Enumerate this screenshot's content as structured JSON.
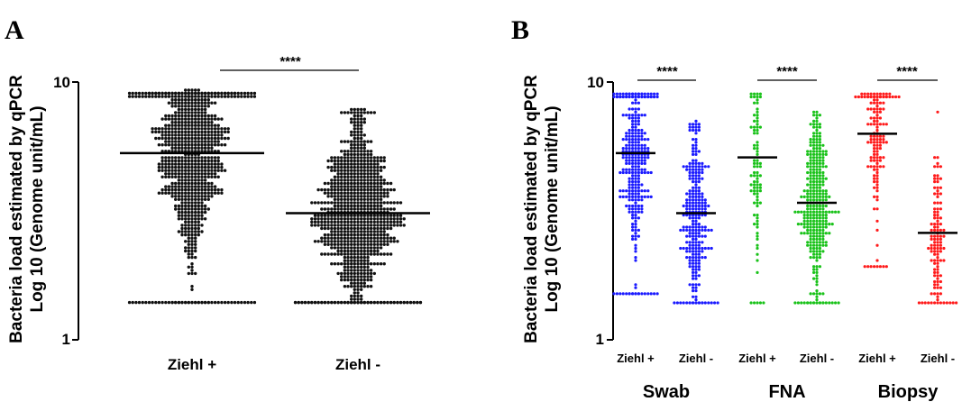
{
  "panels": [
    {
      "letter": "A",
      "ylabel_line1": "Bacteria load estimated by qPCR",
      "ylabel_line2": "Log 10 (Genome unit/mL)",
      "y_tick_labels": [
        "10",
        "1"
      ],
      "significance": [
        {
          "label": "****"
        }
      ]
    },
    {
      "letter": "B",
      "ylabel_line1": "Bacteria load estimated by qPCR",
      "ylabel_line2": "Log 10 (Genome unit/mL)",
      "y_tick_labels": [
        "10",
        "1"
      ],
      "group_labels": [
        "Swab",
        "FNA",
        "Biopsy"
      ],
      "significance": [
        {
          "label": "****"
        },
        {
          "label": "****"
        },
        {
          "label": "****"
        }
      ]
    }
  ],
  "colors": {
    "A": "#111111",
    "swab": "#1a1aff",
    "fna": "#19c219",
    "biopsy": "#ff1a1a"
  },
  "chart_data": [
    {
      "type": "scatter",
      "ylim": [
        1,
        10
      ],
      "y_scale": "log",
      "categories": [
        "Ziehl +",
        "Ziehl -"
      ],
      "series": [
        {
          "category": "Ziehl +",
          "median": 5.3,
          "min": 1.4,
          "max": 9.2,
          "n": 800,
          "color": "#111111"
        },
        {
          "category": "Ziehl -",
          "median": 3.1,
          "min": 1.4,
          "max": 7.8,
          "n": 900,
          "color": "#111111"
        }
      ],
      "significance": [
        {
          "between": [
            "Ziehl +",
            "Ziehl -"
          ],
          "label": "****"
        }
      ]
    },
    {
      "type": "scatter",
      "ylim": [
        1,
        10
      ],
      "y_scale": "log",
      "categories": [
        "Ziehl +",
        "Ziehl -",
        "Ziehl +",
        "Ziehl -",
        "Ziehl +",
        "Ziehl -"
      ],
      "groups": [
        "Swab",
        "FNA",
        "Biopsy"
      ],
      "series": [
        {
          "group": "Swab",
          "category": "Ziehl +",
          "median": 5.3,
          "min": 1.5,
          "max": 9.1,
          "n": 300,
          "color": "#1a1aff"
        },
        {
          "group": "Swab",
          "category": "Ziehl -",
          "median": 3.1,
          "min": 1.4,
          "max": 7.0,
          "n": 260,
          "color": "#1a1aff"
        },
        {
          "group": "FNA",
          "category": "Ziehl +",
          "median": 5.1,
          "min": 1.4,
          "max": 9.0,
          "n": 90,
          "color": "#19c219"
        },
        {
          "group": "FNA",
          "category": "Ziehl -",
          "median": 3.4,
          "min": 1.4,
          "max": 7.7,
          "n": 320,
          "color": "#19c219"
        },
        {
          "group": "Biopsy",
          "category": "Ziehl +",
          "median": 6.3,
          "min": 1.9,
          "max": 9.0,
          "n": 140,
          "color": "#ff1a1a"
        },
        {
          "group": "Biopsy",
          "category": "Ziehl -",
          "median": 2.6,
          "min": 1.4,
          "max": 7.8,
          "n": 120,
          "color": "#ff1a1a"
        }
      ],
      "significance": [
        {
          "group": "Swab",
          "label": "****"
        },
        {
          "group": "FNA",
          "label": "****"
        },
        {
          "group": "Biopsy",
          "label": "****"
        }
      ]
    }
  ]
}
